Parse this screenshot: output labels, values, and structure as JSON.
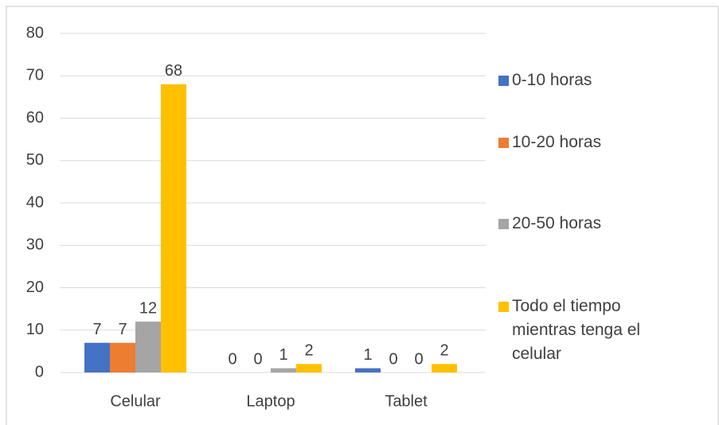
{
  "chart_data": {
    "type": "bar",
    "categories": [
      "Celular",
      "Laptop",
      "Tablet"
    ],
    "series": [
      {
        "name": "0-10 horas",
        "color": "#4472c4",
        "values": [
          7,
          0,
          1
        ]
      },
      {
        "name": "10-20 horas",
        "color": "#ed7d31",
        "values": [
          7,
          0,
          0
        ]
      },
      {
        "name": "20-50 horas",
        "color": "#a5a5a5",
        "values": [
          12,
          1,
          0
        ]
      },
      {
        "name": "Todo el tiempo mientras tenga el celular",
        "color": "#ffc000",
        "values": [
          68,
          2,
          2
        ]
      }
    ],
    "ylim": [
      0,
      80
    ],
    "yticks": [
      0,
      10,
      20,
      30,
      40,
      50,
      60,
      70,
      80
    ],
    "grid": true,
    "legend": "right"
  }
}
